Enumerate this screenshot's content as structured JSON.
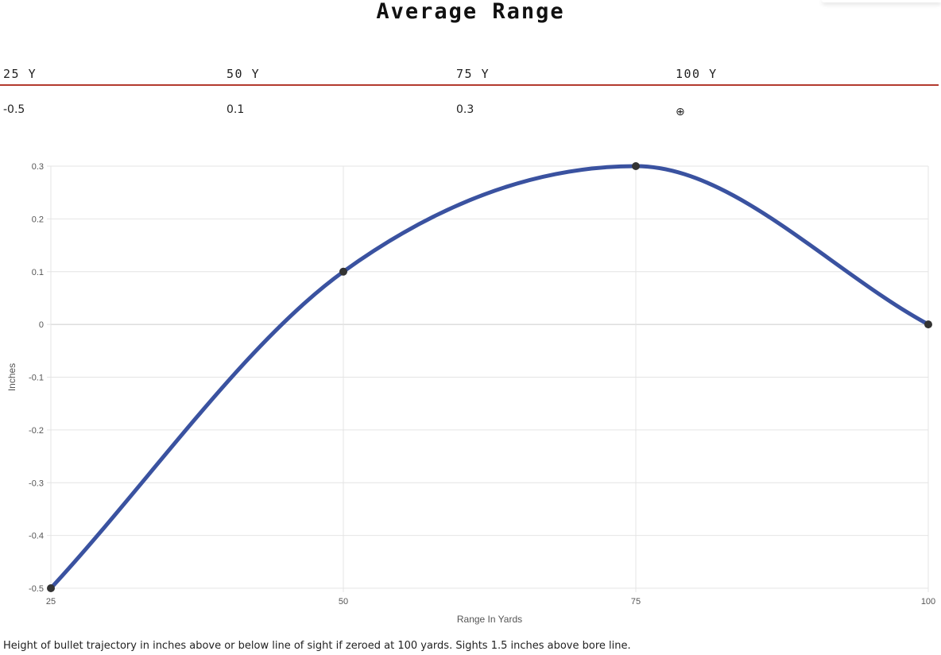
{
  "title": "Average Range",
  "table": {
    "headers": [
      "25 Y",
      "50 Y",
      "75 Y",
      "100 Y"
    ],
    "values": [
      "-0.5",
      "0.1",
      "0.3",
      "⊕"
    ]
  },
  "colors": {
    "header_rule": "#b33a2e",
    "series_line": "#3a52a0",
    "point": "#333333",
    "grid": "#e4e4e4",
    "zero_line": "#cccccc"
  },
  "chart_data": {
    "type": "line",
    "x": [
      25,
      50,
      75,
      100
    ],
    "series": [
      {
        "values": [
          -0.5,
          0.1,
          0.3,
          0
        ]
      }
    ],
    "xlabel": "Range In Yards",
    "ylabel": "Inches",
    "xticks": [
      "25",
      "50",
      "75",
      "100"
    ],
    "yticks": [
      "0.3",
      "0.2",
      "0.1",
      "0",
      "-0.1",
      "-0.2",
      "-0.3",
      "-0.4",
      "-0.5"
    ],
    "xlim": [
      25,
      100
    ],
    "ylim": [
      -0.5,
      0.3
    ],
    "grid": true,
    "smooth": true
  },
  "footnote": "Height of bullet trajectory in inches above or below line of sight if zeroed at 100 yards. Sights 1.5 inches above bore line."
}
